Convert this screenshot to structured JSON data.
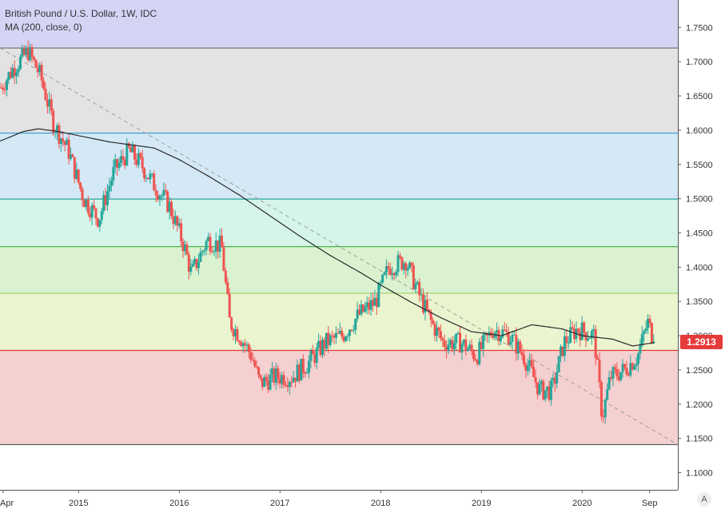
{
  "header": {
    "title": "British Pound / U.S. Dollar, 1W, IDC",
    "indicator": "MA (200, close, 0)"
  },
  "last_price_label": "1.2913",
  "auto_scale_label": "A",
  "colors": {
    "up": "#26a69a",
    "down": "#ef5350",
    "ma": "#2a2a2a",
    "trendline": "#9e9e9e",
    "price_tag": "#e63b3b"
  },
  "chart_data": {
    "type": "candlestick",
    "title": "British Pound / U.S. Dollar, 1W, IDC",
    "ylim": [
      1.075,
      1.79
    ],
    "y_ticks": [
      "1.7500",
      "1.7000",
      "1.6500",
      "1.6000",
      "1.5500",
      "1.5000",
      "1.4500",
      "1.4000",
      "1.3500",
      "1.3000",
      "1.2500",
      "1.2000",
      "1.1500",
      "1.1000"
    ],
    "x_ticks": [
      {
        "label": "Apr",
        "t": 2014.25
      },
      {
        "label": "2015",
        "t": 2015.0
      },
      {
        "label": "2016",
        "t": 2016.0
      },
      {
        "label": "2017",
        "t": 2017.0
      },
      {
        "label": "2018",
        "t": 2018.0
      },
      {
        "label": "2019",
        "t": 2019.0
      },
      {
        "label": "2020",
        "t": 2020.0
      },
      {
        "label": "Sep",
        "t": 2020.67
      }
    ],
    "xlim": [
      2014.22,
      2020.95
    ],
    "fib_levels": [
      {
        "price": 1.7199,
        "fill": "#d4d4f5",
        "line": "#777777"
      },
      {
        "price": 1.5957,
        "fill": "#e3e3e3",
        "line": "#2d9bd0"
      },
      {
        "price": 1.4994,
        "fill": "#d4e8f5",
        "line": "#26a69a"
      },
      {
        "price": 1.43,
        "fill": "#d6f5ea",
        "line": "#4caf50"
      },
      {
        "price": 1.362,
        "fill": "#daf2d0",
        "line": "#9ccc65"
      },
      {
        "price": 1.2785,
        "fill": "#eaf4cf",
        "line": "#e53935"
      },
      {
        "price": 1.141,
        "fill": "#f5d0d0",
        "line": "#555555"
      }
    ],
    "trendline": {
      "t1": 2014.22,
      "p1": 1.7199,
      "t2": 2020.95,
      "p2": 1.141
    },
    "last_price": 1.2913,
    "price_anchors": [
      [
        2014.22,
        1.66
      ],
      [
        2014.35,
        1.69
      ],
      [
        2014.5,
        1.715
      ],
      [
        2014.62,
        1.68
      ],
      [
        2014.75,
        1.61
      ],
      [
        2014.9,
        1.57
      ],
      [
        2015.05,
        1.5
      ],
      [
        2015.2,
        1.47
      ],
      [
        2015.35,
        1.54
      ],
      [
        2015.5,
        1.57
      ],
      [
        2015.62,
        1.55
      ],
      [
        2015.75,
        1.52
      ],
      [
        2015.9,
        1.49
      ],
      [
        2016.05,
        1.43
      ],
      [
        2016.12,
        1.39
      ],
      [
        2016.28,
        1.44
      ],
      [
        2016.42,
        1.43
      ],
      [
        2016.5,
        1.32
      ],
      [
        2016.6,
        1.3
      ],
      [
        2016.72,
        1.27
      ],
      [
        2016.8,
        1.23
      ],
      [
        2016.95,
        1.24
      ],
      [
        2017.12,
        1.24
      ],
      [
        2017.28,
        1.26
      ],
      [
        2017.45,
        1.29
      ],
      [
        2017.62,
        1.3
      ],
      [
        2017.78,
        1.33
      ],
      [
        2017.95,
        1.35
      ],
      [
        2018.08,
        1.4
      ],
      [
        2018.25,
        1.41
      ],
      [
        2018.38,
        1.36
      ],
      [
        2018.5,
        1.32
      ],
      [
        2018.62,
        1.29
      ],
      [
        2018.8,
        1.29
      ],
      [
        2018.95,
        1.27
      ],
      [
        2019.12,
        1.31
      ],
      [
        2019.28,
        1.3
      ],
      [
        2019.42,
        1.27
      ],
      [
        2019.58,
        1.22
      ],
      [
        2019.7,
        1.22
      ],
      [
        2019.82,
        1.29
      ],
      [
        2019.95,
        1.31
      ],
      [
        2020.12,
        1.3
      ],
      [
        2020.2,
        1.18
      ],
      [
        2020.28,
        1.24
      ],
      [
        2020.42,
        1.25
      ],
      [
        2020.55,
        1.27
      ],
      [
        2020.65,
        1.32
      ],
      [
        2020.72,
        1.29
      ]
    ],
    "ma_anchors": [
      [
        2014.22,
        1.584
      ],
      [
        2014.45,
        1.598
      ],
      [
        2014.6,
        1.602
      ],
      [
        2014.8,
        1.598
      ],
      [
        2015.0,
        1.592
      ],
      [
        2015.3,
        1.583
      ],
      [
        2015.55,
        1.578
      ],
      [
        2015.75,
        1.574
      ],
      [
        2016.0,
        1.557
      ],
      [
        2016.3,
        1.532
      ],
      [
        2016.6,
        1.505
      ],
      [
        2016.9,
        1.475
      ],
      [
        2017.2,
        1.445
      ],
      [
        2017.5,
        1.417
      ],
      [
        2017.8,
        1.392
      ],
      [
        2018.0,
        1.374
      ],
      [
        2018.3,
        1.349
      ],
      [
        2018.6,
        1.326
      ],
      [
        2018.9,
        1.306
      ],
      [
        2019.2,
        1.3
      ],
      [
        2019.5,
        1.316
      ],
      [
        2019.8,
        1.31
      ],
      [
        2020.0,
        1.3
      ],
      [
        2020.3,
        1.295
      ],
      [
        2020.5,
        1.285
      ],
      [
        2020.72,
        1.29
      ]
    ]
  }
}
